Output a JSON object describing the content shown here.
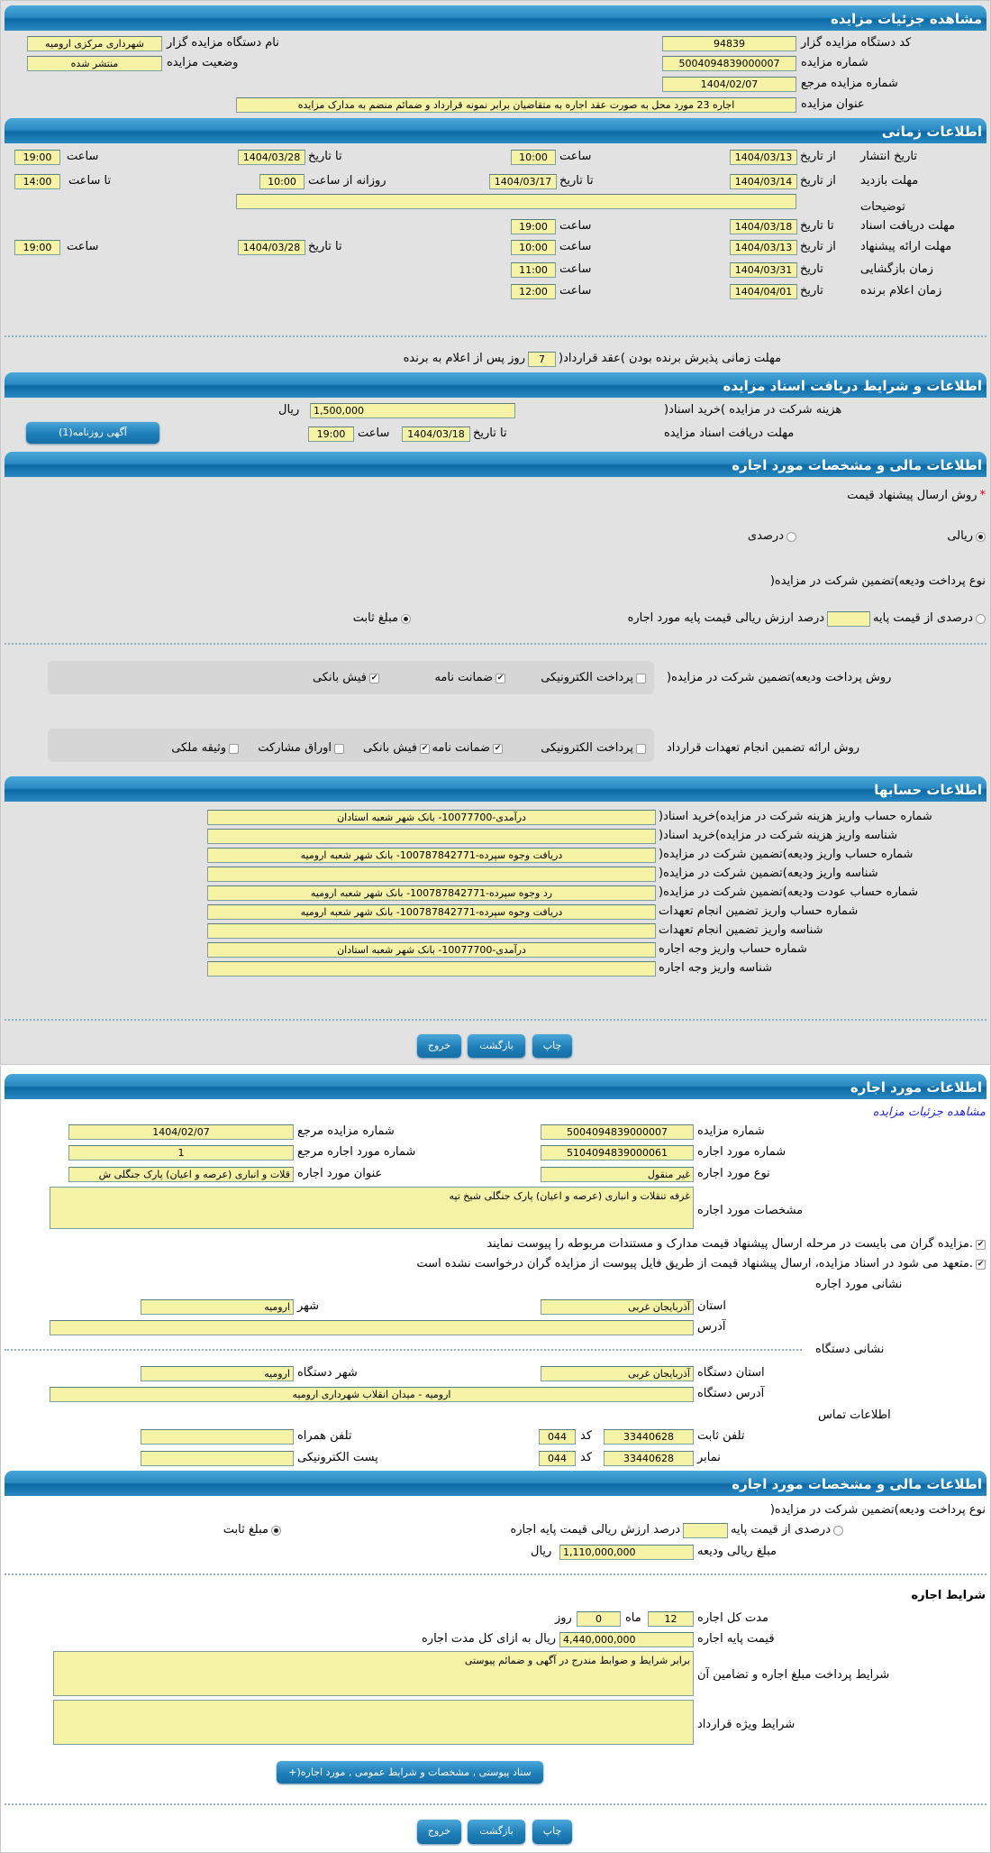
{
  "auction": {
    "title": "مشاهده جزئیات مزایده",
    "org_code_label": "کد دستگاه مزایده گزار",
    "org_code": "94839",
    "org_name_label": "نام دستگاه مزایده گزار",
    "org_name": "شهرداری مرکزی ارومیه",
    "number_label": "شماره مزایده",
    "number": "5004094839000007",
    "status_label": "وضعیت مزایده",
    "status": "منتشر شده",
    "ref_label": "شماره مزایده مرجع",
    "ref": "1404/02/07",
    "subject_label": "عنوان مزایده",
    "subject": "اجاره 23 مورد محل به صورت عقد اجاره به متقاضیان برابر نمونه قرارداد و ضمائم منضم به مدارک مزایده"
  },
  "timing": {
    "title": "اطلاعات زمانی",
    "from_date": "از تاریخ",
    "to_date": "تا تاریخ",
    "date": "تاریخ",
    "time": "ساعت",
    "to_time": "تا ساعت",
    "daily_from": "روزانه از ساعت",
    "publish_label": "تاریخ انتشار",
    "publish": {
      "from": "1404/03/13",
      "from_time": "10:00",
      "to": "1404/03/28",
      "to_time": "19:00"
    },
    "visit_label": "مهلت بازدید",
    "visit": {
      "from": "1404/03/14",
      "to": "1404/03/17",
      "daily_from": "10:00",
      "daily_to": "14:00"
    },
    "notes_label": "توضیحات",
    "notes": "",
    "docs_label": "مهلت دریافت اسناد",
    "docs": {
      "to": "1404/03/18",
      "time": "19:00"
    },
    "offer_label": "مهلت ارائه پیشنهاد",
    "offer": {
      "from": "1404/03/13",
      "from_time": "10:00",
      "to": "1404/03/28",
      "to_time": "19:00"
    },
    "opening_label": "زمان بازگشایی",
    "opening": {
      "date": "1404/03/31",
      "time": "11:00"
    },
    "winner_label": "زمان اعلام برنده",
    "winner": {
      "date": "1404/04/01",
      "time": "12:00"
    },
    "acceptance_label": "مهلت زمانی پذیرش برنده بودن )عقد قرارداد(",
    "acceptance_days": "7",
    "acceptance_suffix": "روز پس از اعلام به برنده"
  },
  "docs_section": {
    "title": "اطلاعات و شرایط دریافت اسناد مزایده",
    "fee_label": "هزینه شرکت در مزایده )خرید اسناد(",
    "fee": "1,500,000",
    "currency": "ریال",
    "deadline_label": "مهلت دریافت اسناد مزایده",
    "to_date": "تا تاریخ",
    "deadline_date": "1404/03/18",
    "time": "ساعت",
    "deadline_time": "19:00",
    "newspaper_button": "آگهی روزنامه(1)"
  },
  "financial": {
    "title": "اطلاعات مالی و مشخصات مورد اجاره",
    "price_method_label": "روش ارسال پیشنهاد قیمت",
    "required_mark": "*",
    "price_methods": [
      {
        "label": "ریالی",
        "checked": true
      },
      {
        "label": "درصدی",
        "checked": false
      }
    ],
    "deposit_type_label": "نوع پرداخت ودیعه)تضمین شرکت در مزایده(",
    "deposit_percent_label": "درصدی از قیمت پایه",
    "deposit_percent_value": "",
    "deposit_percent_suffix": "درصد ارزش ریالی قیمت پایه مورد اجاره",
    "deposit_fixed_label": "مبلغ ثابت",
    "deposit_fixed_checked": true,
    "deposit_methods_label": "روش پرداخت ودیعه)تضمین شرکت در مزایده(",
    "deposit_methods": [
      {
        "label": "پرداخت الکترونیکی",
        "checked": false
      },
      {
        "label": "ضمانت نامه",
        "checked": true
      },
      {
        "label": "فیش بانکی",
        "checked": true
      }
    ],
    "guarantee_methods_label": "روش ارائه تضمین انجام تعهدات قرارداد",
    "guarantee_methods": [
      {
        "label": "پرداخت الکترونیکی",
        "checked": false
      },
      {
        "label": "ضمانت نامه",
        "checked": true
      },
      {
        "label": "فیش بانکی",
        "checked": true
      },
      {
        "label": "اوراق مشارکت",
        "checked": false
      },
      {
        "label": "وثیقه ملکی",
        "checked": false
      }
    ]
  },
  "accounts": {
    "title": "اطلاعات حسابها",
    "rows": [
      {
        "label": "شماره حساب واریز هزینه شرکت در مزایده)خرید اسناد(",
        "value": "درآمدی-10077700- بانک شهر شعبه استادان"
      },
      {
        "label": "شناسه واریز هزینه شرکت در مزایده)خرید اسناد(",
        "value": ""
      },
      {
        "label": "شماره حساب واریز ودیعه)تضمین شرکت در مزایده(",
        "value": "دریافت وجوه سپرده-100787842771- بانک شهر شعبه ارومیه"
      },
      {
        "label": "شناسه واریز ودیعه)تضمین شرکت در مزایده(",
        "value": ""
      },
      {
        "label": "شماره حساب عودت ودیعه)تضمین شرکت در مزایده(",
        "value": "رد وجوه سپرده-100787842771- بانک شهر شعبه ارومیه"
      },
      {
        "label": "شماره حساب واریز تضمین انجام تعهدات",
        "value": "دریافت وجوه سپرده-100787842771- بانک شهر شعبه ارومیه"
      },
      {
        "label": "شناسه واریز تضمین انجام تعهدات",
        "value": ""
      },
      {
        "label": "شماره حساب واریز وجه اجاره",
        "value": "درآمدی-10077700- بانک شهر شعبه استادان"
      },
      {
        "label": "شناسه واریز وجه اجاره",
        "value": ""
      }
    ]
  },
  "actions": {
    "print": "چاپ",
    "back": "بازگشت",
    "exit": "خروج"
  },
  "lease_item": {
    "title": "اطلاعات مورد اجاره",
    "view_auction_link": "مشاهده جزئیات مزایده",
    "auction_number_label": "شماره مزایده",
    "auction_number": "5004094839000007",
    "auction_ref_label": "شماره مزایده مرجع",
    "auction_ref": "1404/02/07",
    "item_number_label": "شماره مورد اجاره",
    "item_number": "5104094839000061",
    "item_ref_label": "شماره مورد اجاره مرجع",
    "item_ref": "1",
    "item_type_label": "نوع مورد اجاره",
    "item_type": "غیر منقول",
    "item_title_label": "عنوان مورد اجاره",
    "item_title": "قلات و انباری (عرصه و اعیان) پارک جنگلی ش",
    "item_specs_label": "مشخصات مورد اجاره",
    "item_specs": "غرفه تنقلات و انباری (عرصه و اعیان) پارک جنگلی شیخ تپه",
    "notice_1": "مزایده گران می بایست در مرحله ارسال پیشنهاد قیمت مدارک و مستندات مربوطه را پیوست نمایند.",
    "notice_2": "متعهد می شود در اسناد مزایده، ارسال پیشنهاد قیمت از طریق فایل پیوست از مزایده گران درخواست نشده است.",
    "item_address_title": "نشانی مورد اجاره",
    "province_label": "استان",
    "province": "آذربایجان غربی",
    "city_label": "شهر",
    "city": "ارومیه",
    "address_label": "آدرس",
    "address": "",
    "org_address_title": "نشانی دستگاه",
    "org_province_label": "استان دستگاه",
    "org_province": "آذربایجان غربی",
    "org_city_label": "شهر دستگاه",
    "org_city": "ارومیه",
    "org_address_label": "آدرس دستگاه",
    "org_address": "ارومیه - میدان انقلاب شهرداری ارومیه",
    "contact_title": "اطلاعات تماس",
    "phone_label": "تلفن ثابت",
    "phone": "33440628",
    "code_label": "کد",
    "phone_code": "044",
    "mobile_label": "تلفن همراه",
    "mobile": "",
    "fax_label": "نمابر",
    "fax": "33440628",
    "fax_code": "044",
    "email_label": "پست الکترونیکی",
    "email": ""
  },
  "lease_financial": {
    "title": "اطلاعات مالی و مشخصات مورد اجاره",
    "deposit_type_label": "نوع پرداخت ودیعه)تضمین شرکت در مزایده(",
    "deposit_percent_label": "درصدی از قیمت پایه",
    "deposit_percent_value": "",
    "deposit_percent_suffix": "درصد ارزش ریالی قیمت پایه اجاره",
    "deposit_fixed_label": "مبلغ ثابت",
    "deposit_amount_label": "مبلغ ریالی ودیعه",
    "deposit_amount": "1,110,000,000",
    "currency": "ریال",
    "terms_title": "شرایط اجاره",
    "duration_label": "مدت کل اجاره",
    "duration_months": "12",
    "months_label": "ماه",
    "duration_days": "0",
    "days_label": "روز",
    "base_price_label": "قیمت پایه اجاره",
    "base_price": "4,440,000,000",
    "base_price_suffix": "ریال به ازای کل مدت اجاره",
    "payment_terms_label": "شرایط پرداخت مبلغ اجاره و تضامین آن",
    "payment_terms": "برابر شرایط و ضوابط مندرج در آگهی و ضمائم پیوستی",
    "special_terms_label": "شرایط ویژه قرارداد",
    "special_terms": "",
    "attachments_button": "سناد پیوستی , مشخصات و شرایط عمومی , مورد اجاره(+"
  }
}
